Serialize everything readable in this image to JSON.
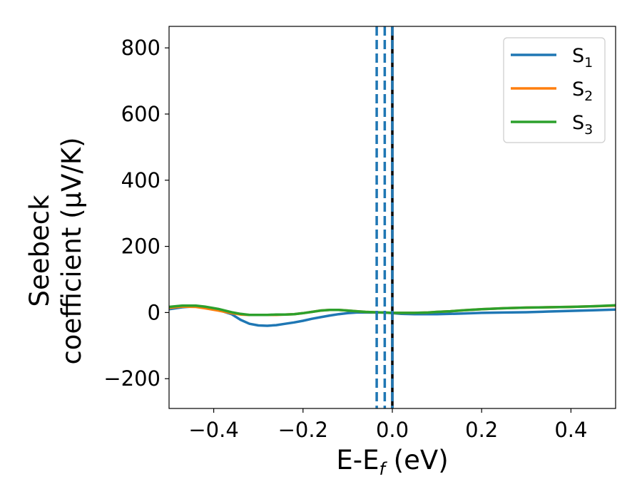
{
  "chart_data": {
    "type": "line",
    "title": "",
    "xlabel": "E-E",
    "xlabel_sub": "f",
    "xlabel_unit": " (eV)",
    "ylabel_line1": "Seebeck",
    "ylabel_line2": "coefficient  (μV/K)",
    "xlim": [
      -0.5,
      0.5
    ],
    "ylim": [
      -290,
      865
    ],
    "xticks": [
      -0.4,
      -0.2,
      0.0,
      0.2,
      0.4
    ],
    "xtick_labels": [
      "−0.4",
      "−0.2",
      "0.0",
      "0.2",
      "0.4"
    ],
    "yticks": [
      -200,
      0,
      200,
      400,
      600,
      800
    ],
    "ytick_labels": [
      "−200",
      "0",
      "200",
      "400",
      "600",
      "800"
    ],
    "grid": false,
    "legend_position": "top-right",
    "series": [
      {
        "name": "S",
        "sub": "1",
        "color": "#1f77b4",
        "x": [
          -0.5,
          -0.47,
          -0.44,
          -0.42,
          -0.39,
          -0.36,
          -0.34,
          -0.32,
          -0.3,
          -0.28,
          -0.26,
          -0.24,
          -0.22,
          -0.2,
          -0.18,
          -0.16,
          -0.14,
          -0.12,
          -0.1,
          -0.08,
          -0.06,
          -0.04,
          -0.02,
          0.0,
          0.02,
          0.05,
          0.08,
          0.1,
          0.13,
          0.16,
          0.2,
          0.25,
          0.3,
          0.35,
          0.4,
          0.45,
          0.5
        ],
        "y": [
          10,
          16,
          19,
          17,
          8,
          -5,
          -22,
          -34,
          -39,
          -40,
          -38,
          -34,
          -30,
          -25,
          -19,
          -14,
          -9,
          -5,
          -2,
          0,
          0,
          0,
          0,
          -2,
          -4,
          -5,
          -5,
          -5,
          -4,
          -3,
          -1,
          0,
          1,
          3,
          5,
          7,
          9
        ]
      },
      {
        "name": "S",
        "sub": "2",
        "color": "#ff7f0e",
        "x": [
          -0.5,
          -0.47,
          -0.44,
          -0.42,
          -0.39,
          -0.36,
          -0.34,
          -0.32,
          -0.3,
          -0.28,
          -0.26,
          -0.24,
          -0.22,
          -0.2,
          -0.18,
          -0.16,
          -0.14,
          -0.12,
          -0.1,
          -0.08,
          -0.06,
          -0.04,
          -0.02,
          0.0,
          0.02,
          0.05,
          0.08,
          0.1,
          0.13,
          0.16,
          0.2,
          0.25,
          0.3,
          0.35,
          0.4,
          0.45,
          0.5
        ],
        "y": [
          14,
          18,
          17,
          13,
          6,
          -2,
          -6,
          -7,
          -7,
          -7,
          -7,
          -6,
          -5,
          -2,
          2,
          6,
          8,
          8,
          6,
          4,
          2,
          1,
          0,
          -1,
          -1,
          -1,
          0,
          2,
          4,
          7,
          10,
          13,
          15,
          16,
          17,
          19,
          21
        ]
      },
      {
        "name": "S",
        "sub": "3",
        "color": "#2ca02c",
        "x": [
          -0.5,
          -0.47,
          -0.44,
          -0.42,
          -0.39,
          -0.36,
          -0.34,
          -0.32,
          -0.3,
          -0.28,
          -0.26,
          -0.24,
          -0.22,
          -0.2,
          -0.18,
          -0.16,
          -0.14,
          -0.12,
          -0.1,
          -0.08,
          -0.06,
          -0.04,
          -0.02,
          0.0,
          0.02,
          0.05,
          0.08,
          0.1,
          0.13,
          0.16,
          0.2,
          0.25,
          0.3,
          0.35,
          0.4,
          0.45,
          0.5
        ],
        "y": [
          17,
          21,
          21,
          18,
          11,
          1,
          -4,
          -7,
          -7,
          -7,
          -6,
          -6,
          -5,
          -2,
          2,
          6,
          8,
          8,
          6,
          4,
          2,
          1,
          0,
          -1,
          -1,
          -1,
          0,
          2,
          4,
          7,
          10,
          13,
          15,
          16,
          17,
          19,
          22
        ]
      }
    ],
    "vlines": [
      {
        "x": -0.035,
        "color": "#1f77b4",
        "style": "dashed"
      },
      {
        "x": -0.017,
        "color": "#1f77b4",
        "style": "dashed"
      },
      {
        "x": 0.0,
        "color": "#000000",
        "style": "solid"
      },
      {
        "x": 0.0,
        "color": "#1f77b4",
        "style": "dashed"
      }
    ]
  }
}
